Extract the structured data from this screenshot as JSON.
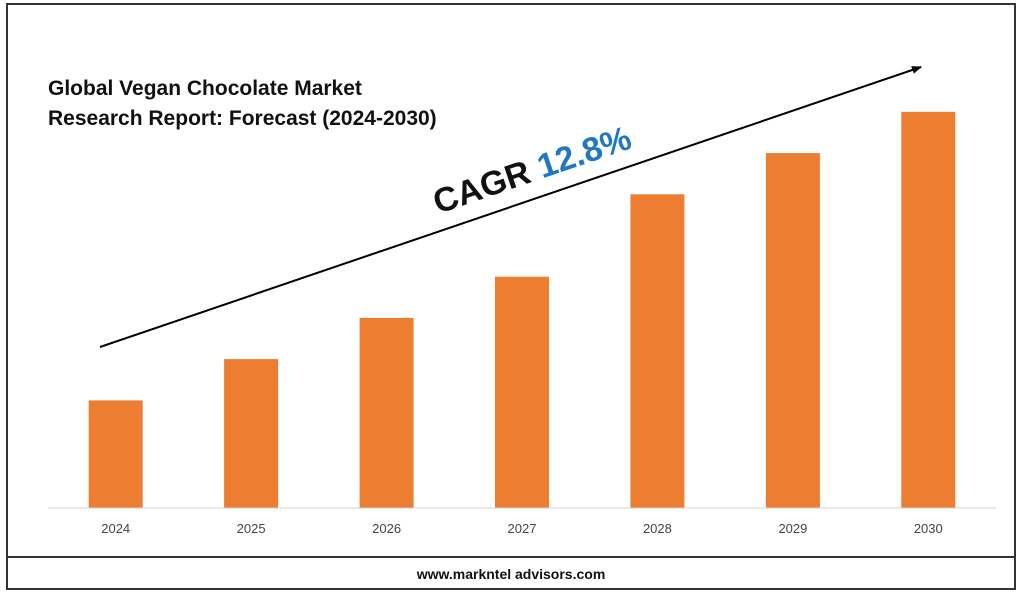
{
  "chart_data": {
    "type": "bar",
    "title_line1": "Global Vegan Chocolate Market",
    "title_line2": "Research Report: Forecast (2024-2030)",
    "categories": [
      "2024",
      "2025",
      "2026",
      "2027",
      "2028",
      "2029",
      "2030"
    ],
    "values": [
      23.5,
      32.5,
      41.5,
      50.5,
      68.5,
      77.5,
      86.5
    ],
    "ylim": [
      0,
      100
    ],
    "grid": false,
    "legend": "none",
    "bar_color": "#ED7D31",
    "annotation": {
      "label": "CAGR",
      "value": "12.8%",
      "value_color": "#1F78C1",
      "arrow": "rising trend arrow from lower-left to upper-right"
    }
  },
  "footer": {
    "website": "www.markntel advisors.com"
  }
}
